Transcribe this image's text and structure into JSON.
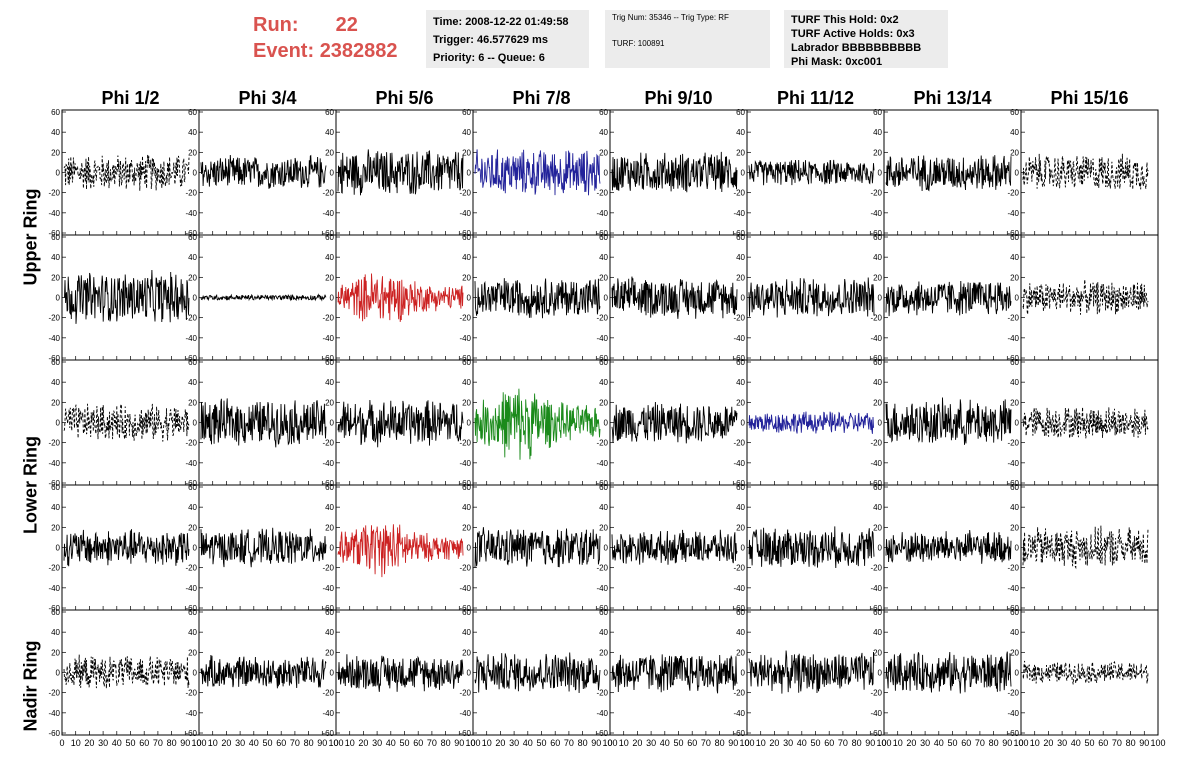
{
  "header": {
    "run_label": "Run:",
    "run_value": "22",
    "event_label": "Event:",
    "event_value": "2382882",
    "accent_color": "#d9534f"
  },
  "info_boxes": {
    "time": {
      "lines": [
        "Time: 2008-12-22 01:49:58",
        "Trigger: 46.577629 ms",
        "Priority: 6 -- Queue: 6"
      ]
    },
    "trig": {
      "lines": [
        "Trig Num: 35346 -- Trig Type: RF",
        "TURF: 100891"
      ]
    },
    "turf": {
      "lines": [
        "TURF This Hold: 0x2",
        "TURF Active Holds: 0x3",
        "Labrador BBBBBBBBBB",
        "Phi Mask: 0xc001"
      ]
    }
  },
  "columns": [
    "Phi 1/2",
    "Phi 3/4",
    "Phi 5/6",
    "Phi 7/8",
    "Phi 9/10",
    "Phi 11/12",
    "Phi 13/14",
    "Phi 15/16"
  ],
  "rows": [
    "Upper Ring",
    "Lower Ring",
    "Nadir Ring"
  ],
  "y_ticks": [
    60,
    40,
    20,
    0,
    -20,
    -40,
    -60
  ],
  "x_ticks": [
    0,
    10,
    20,
    30,
    40,
    50,
    60,
    70,
    80,
    90,
    100
  ],
  "trace_colors": {
    "normal": "#000000",
    "red": "#cc2222",
    "blue": "#22229a",
    "green": "#1a8a1a"
  },
  "panels": [
    [
      "dashed",
      "normal",
      "normal",
      "blue",
      "normal",
      "normal",
      "normal",
      "dashed"
    ],
    [
      "normal",
      "normal",
      "red",
      "normal",
      "normal",
      "normal",
      "normal",
      "dashed"
    ],
    [
      "dashed",
      "normal",
      "normal",
      "green",
      "normal",
      "blue",
      "normal",
      "dashed"
    ],
    [
      "normal",
      "normal",
      "red",
      "normal",
      "normal",
      "normal",
      "normal",
      "dashed"
    ],
    [
      "dashed",
      "normal",
      "normal",
      "normal",
      "normal",
      "normal",
      "normal",
      "dashed"
    ]
  ],
  "amplitudes": [
    [
      20,
      18,
      25,
      25,
      22,
      14,
      20,
      20
    ],
    [
      28,
      3,
      22,
      22,
      22,
      22,
      20,
      18
    ],
    [
      20,
      25,
      25,
      30,
      22,
      12,
      25,
      18
    ],
    [
      20,
      20,
      22,
      22,
      18,
      22,
      18,
      22
    ],
    [
      18,
      18,
      20,
      22,
      22,
      22,
      22,
      12
    ]
  ]
}
